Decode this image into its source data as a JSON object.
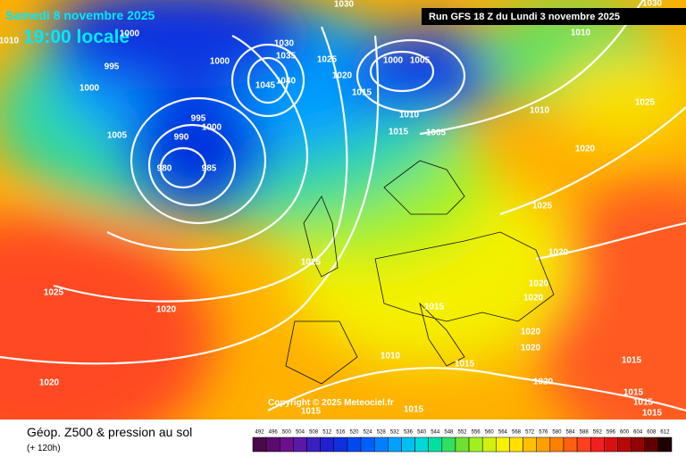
{
  "header": {
    "date": "Samedi 8 novembre 2025",
    "time": "19:00 locale",
    "run": "Run GFS 18 Z du Lundi 3 novembre 2025"
  },
  "copyright": "Copyright © 2025 Meteociel.fr",
  "footer": {
    "title": "Géop. Z500 & pression au sol",
    "subtitle": "(+ 120h)"
  },
  "isobar_labels": [
    "1030",
    "1030",
    "1000",
    "1010",
    "995",
    "1000",
    "1030",
    "1035",
    "1000",
    "1025",
    "1020",
    "1000",
    "1005",
    "1010",
    "1045",
    "1040",
    "1015",
    "1010",
    "1010",
    "1025",
    "1005",
    "995",
    "990",
    "1015",
    "1005",
    "1000",
    "980",
    "985",
    "1020",
    "1025",
    "1015",
    "1020",
    "1025",
    "1020",
    "1020",
    "1020",
    "1015",
    "1020",
    "1020",
    "1010",
    "1015",
    "1020",
    "1020",
    "1015",
    "1015",
    "1015",
    "1015",
    "1015",
    "1015"
  ],
  "legend": {
    "labels": [
      "492",
      "496",
      "500",
      "504",
      "508",
      "512",
      "516",
      "520",
      "524",
      "528",
      "532",
      "536",
      "540",
      "544",
      "548",
      "552",
      "556",
      "560",
      "564",
      "568",
      "572",
      "576",
      "580",
      "584",
      "588",
      "592",
      "596",
      "600",
      "604",
      "608",
      "612"
    ],
    "colors": [
      "#4a0a4a",
      "#5a0c6a",
      "#6a108a",
      "#5a18a8",
      "#3a20c0",
      "#2020d0",
      "#1030e0",
      "#0048f0",
      "#0060ff",
      "#0080ff",
      "#00a0ff",
      "#00c0f0",
      "#00d8d8",
      "#00e0a0",
      "#30e060",
      "#70e030",
      "#a0f020",
      "#d0f010",
      "#f8f000",
      "#ffe000",
      "#ffc000",
      "#ffa000",
      "#ff8000",
      "#ff6010",
      "#ff4020",
      "#f02020",
      "#d81010",
      "#b80808",
      "#900404",
      "#600000",
      "#200000"
    ]
  }
}
